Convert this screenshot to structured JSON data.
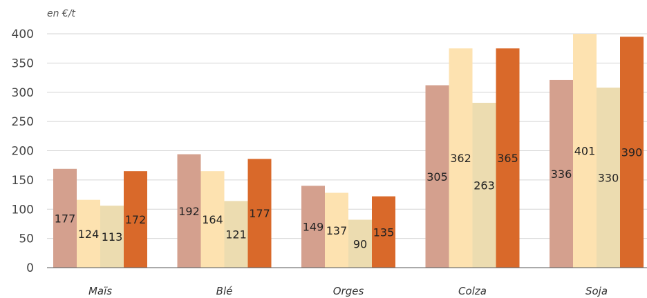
{
  "chart_data": {
    "type": "bar",
    "unit_label": "en €/t",
    "categories": [
      "Maïs",
      "Blé",
      "Orges",
      "Colza",
      "Soja"
    ],
    "series": [
      {
        "color": "#d4a08e",
        "values": [
          177,
          192,
          149,
          305,
          336
        ],
        "bar_values": [
          169,
          194,
          140,
          312,
          321
        ]
      },
      {
        "color": "#fde2b0",
        "values": [
          124,
          164,
          137,
          362,
          401
        ],
        "bar_values": [
          116,
          165,
          128,
          375,
          400
        ]
      },
      {
        "color": "#ecdcb0",
        "values": [
          113,
          121,
          90,
          263,
          330
        ],
        "bar_values": [
          106,
          114,
          82,
          282,
          308
        ]
      },
      {
        "color": "#d9692a",
        "values": [
          172,
          177,
          135,
          365,
          390
        ],
        "bar_values": [
          165,
          186,
          122,
          375,
          395
        ]
      }
    ],
    "yticks": [
      0,
      50,
      100,
      150,
      200,
      250,
      300,
      350,
      400
    ],
    "ylim": [
      0,
      400
    ],
    "grid": true,
    "legend": "none"
  }
}
